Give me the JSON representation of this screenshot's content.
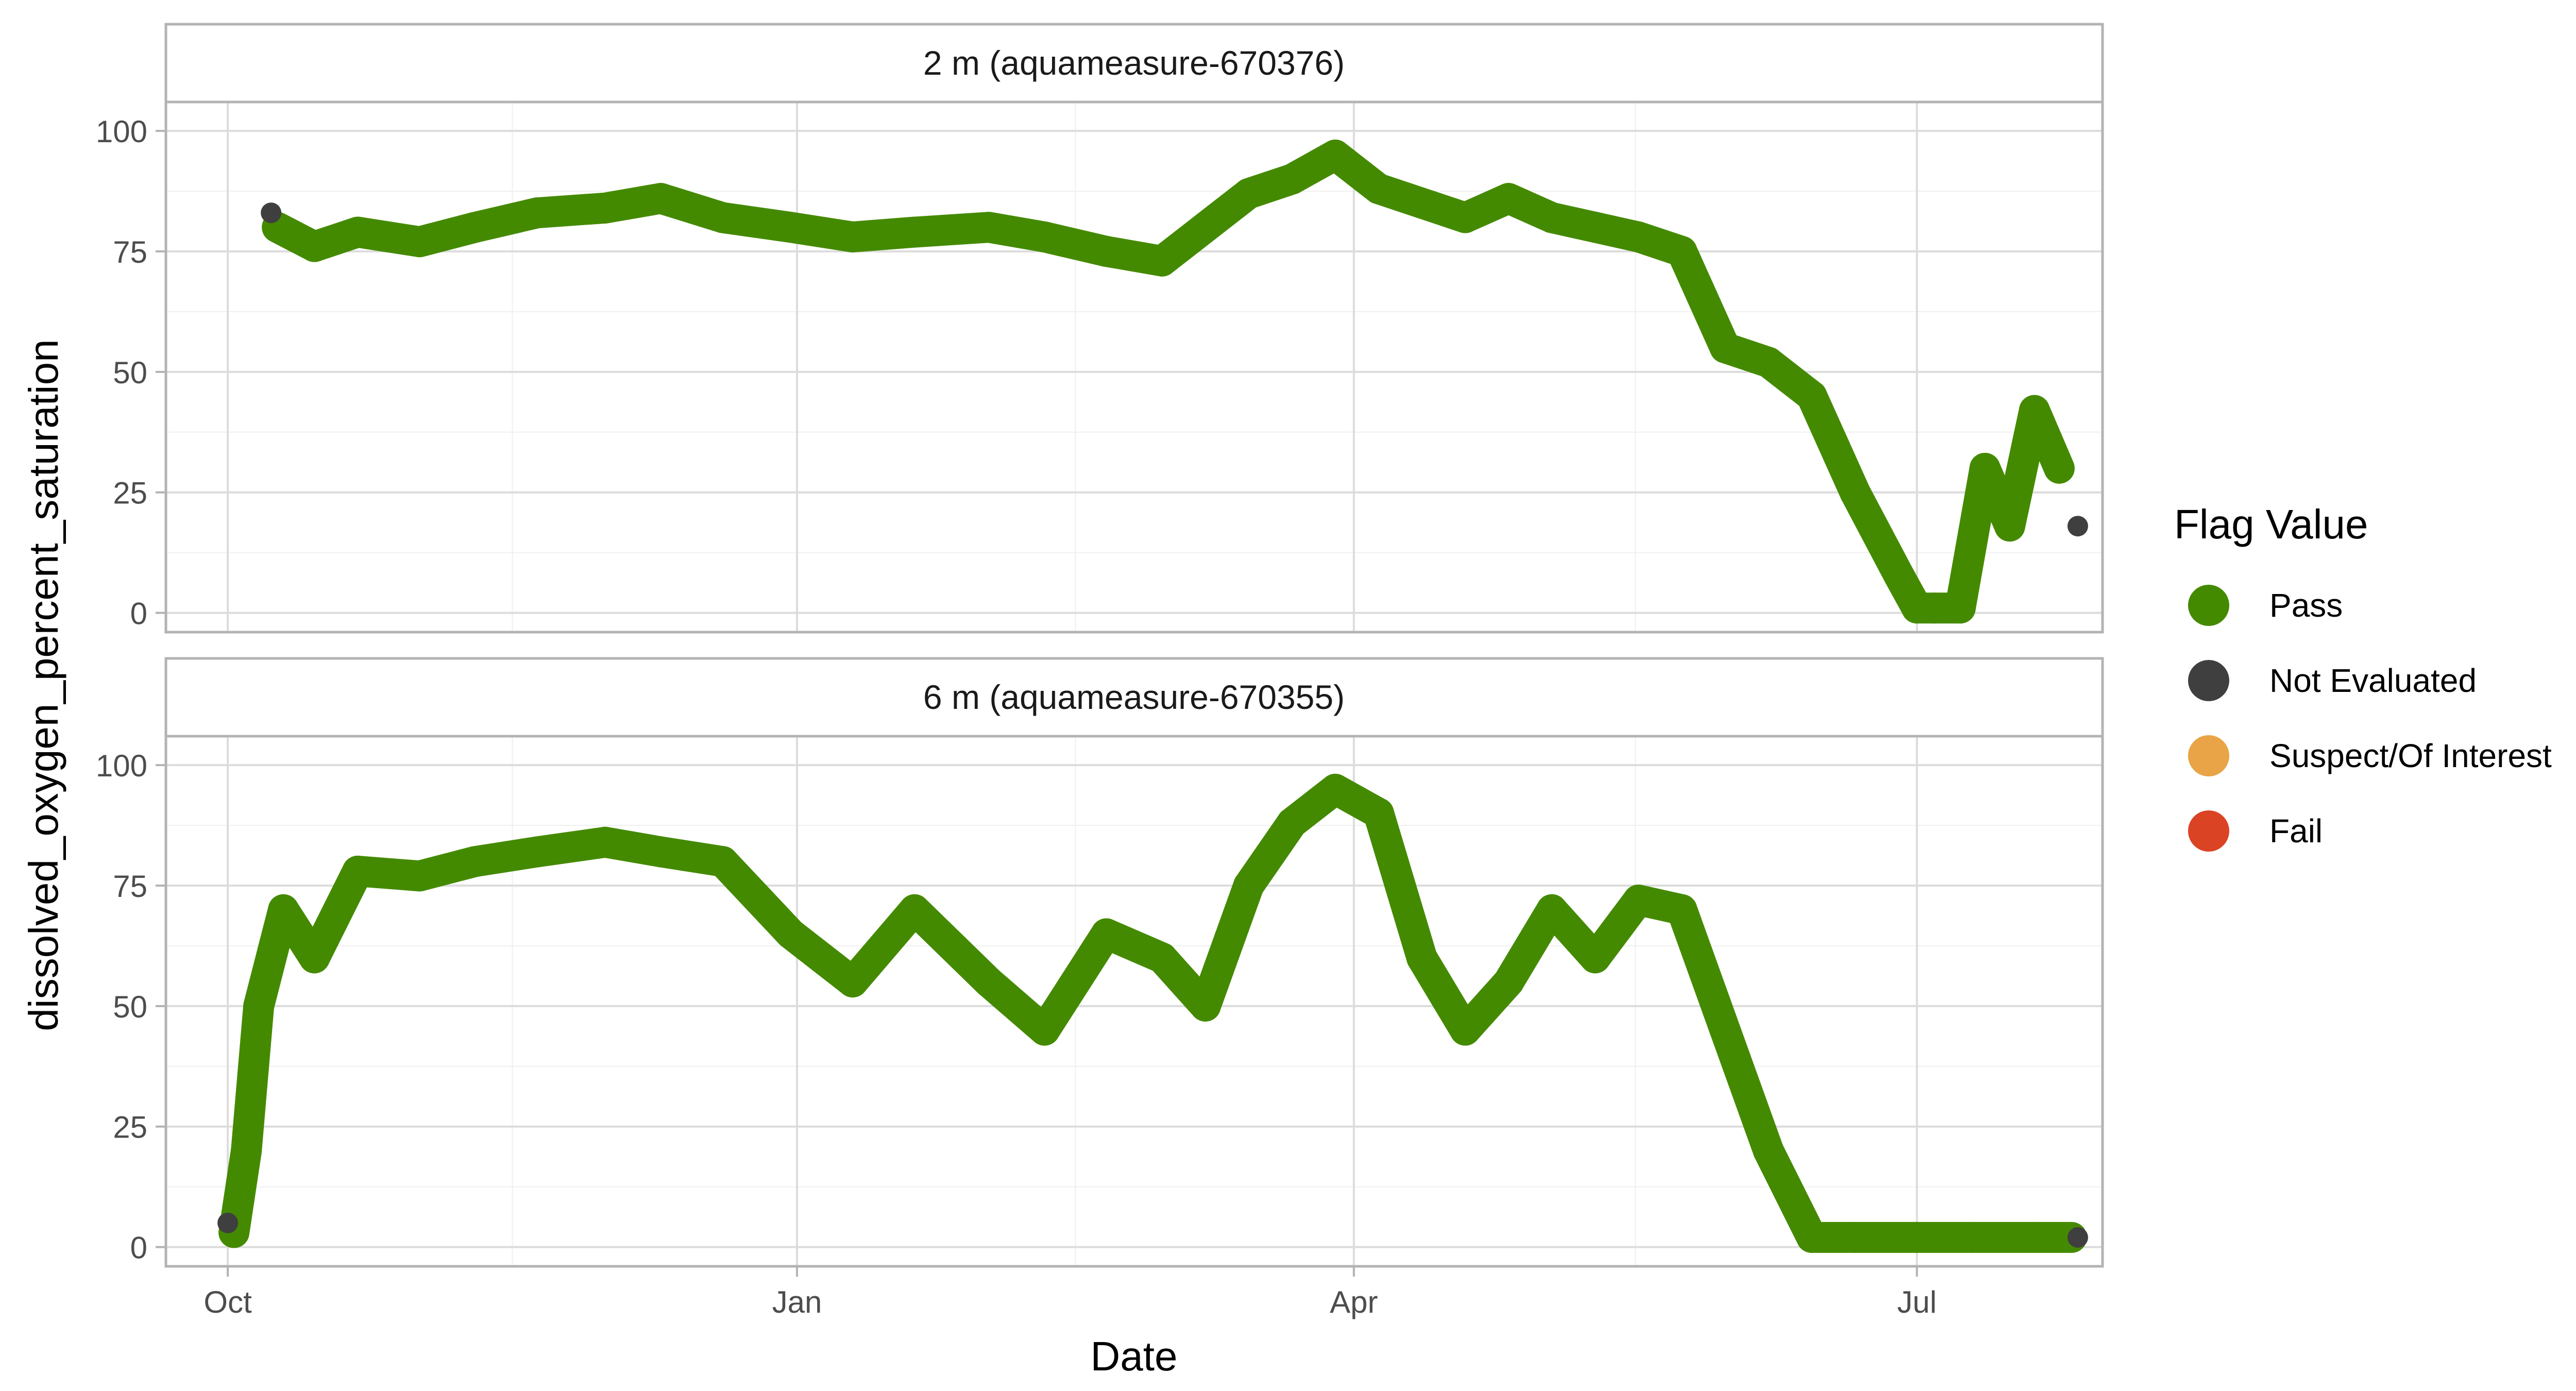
{
  "chart_data": {
    "type": "scatter",
    "xlabel": "Date",
    "ylabel": "dissolved_oxygen_percent_saturation",
    "x_ticks": [
      "Oct",
      "Jan",
      "Apr",
      "Jul"
    ],
    "x_tick_dates": [
      "2022-10-01",
      "2023-01-01",
      "2023-04-01",
      "2023-07-01"
    ],
    "x_range": [
      "2022-09-21",
      "2023-07-31"
    ],
    "y_ticks": [
      0,
      25,
      50,
      75,
      100
    ],
    "ylim": [
      -4,
      106
    ],
    "grid": true,
    "legend": {
      "title": "Flag Value",
      "position": "right",
      "entries": [
        {
          "label": "Pass",
          "color": "#448A00"
        },
        {
          "label": "Not Evaluated",
          "color": "#3F3F3F"
        },
        {
          "label": "Suspect/Of Interest",
          "color": "#E8A446"
        },
        {
          "label": "Fail",
          "color": "#DB4325"
        }
      ]
    },
    "panels": [
      {
        "strip": "2 m (aquameasure-670376)",
        "series": [
          {
            "flag": "Not Evaluated",
            "x": [
              "2022-10-08",
              "2023-07-27"
            ],
            "y": [
              83,
              18
            ]
          },
          {
            "flag": "Pass",
            "x": [
              "2022-10-09",
              "2022-10-15",
              "2022-10-22",
              "2022-11-01",
              "2022-11-10",
              "2022-11-20",
              "2022-12-01",
              "2022-12-10",
              "2022-12-20",
              "2022-12-31",
              "2023-01-10",
              "2023-01-20",
              "2023-02-01",
              "2023-02-10",
              "2023-02-20",
              "2023-03-01",
              "2023-03-08",
              "2023-03-15",
              "2023-03-22",
              "2023-03-29",
              "2023-04-05",
              "2023-04-12",
              "2023-04-19",
              "2023-04-26",
              "2023-05-03",
              "2023-05-10",
              "2023-05-17",
              "2023-05-24",
              "2023-05-31",
              "2023-06-07",
              "2023-06-14",
              "2023-06-21",
              "2023-06-28",
              "2023-07-01",
              "2023-07-04",
              "2023-07-08",
              "2023-07-12",
              "2023-07-16",
              "2023-07-20",
              "2023-07-24"
            ],
            "y": [
              80,
              76,
              79,
              77,
              80,
              83,
              84,
              86,
              82,
              80,
              78,
              79,
              80,
              78,
              75,
              73,
              80,
              87,
              90,
              95,
              88,
              85,
              82,
              86,
              82,
              80,
              78,
              75,
              55,
              52,
              45,
              25,
              8,
              1,
              1,
              1,
              30,
              18,
              42,
              30
            ]
          }
        ]
      },
      {
        "strip": "6 m (aquameasure-670355)",
        "series": [
          {
            "flag": "Not Evaluated",
            "x": [
              "2022-10-01",
              "2023-07-27"
            ],
            "y": [
              5,
              2
            ]
          },
          {
            "flag": "Pass",
            "x": [
              "2022-10-02",
              "2022-10-04",
              "2022-10-06",
              "2022-10-10",
              "2022-10-15",
              "2022-10-22",
              "2022-11-01",
              "2022-11-10",
              "2022-11-20",
              "2022-12-01",
              "2022-12-10",
              "2022-12-20",
              "2022-12-31",
              "2023-01-10",
              "2023-01-20",
              "2023-02-01",
              "2023-02-10",
              "2023-02-20",
              "2023-03-01",
              "2023-03-08",
              "2023-03-15",
              "2023-03-22",
              "2023-03-29",
              "2023-04-05",
              "2023-04-12",
              "2023-04-19",
              "2023-04-26",
              "2023-05-03",
              "2023-05-10",
              "2023-05-17",
              "2023-05-24",
              "2023-05-31",
              "2023-06-07",
              "2023-06-14",
              "2023-06-21",
              "2023-07-01",
              "2023-07-10",
              "2023-07-20",
              "2023-07-26"
            ],
            "y": [
              3,
              20,
              50,
              70,
              60,
              78,
              77,
              80,
              82,
              84,
              82,
              80,
              65,
              55,
              70,
              55,
              45,
              65,
              60,
              50,
              75,
              88,
              95,
              90,
              60,
              45,
              55,
              70,
              60,
              72,
              70,
              45,
              20,
              2,
              2,
              2,
              2,
              2,
              2
            ]
          }
        ]
      }
    ]
  }
}
